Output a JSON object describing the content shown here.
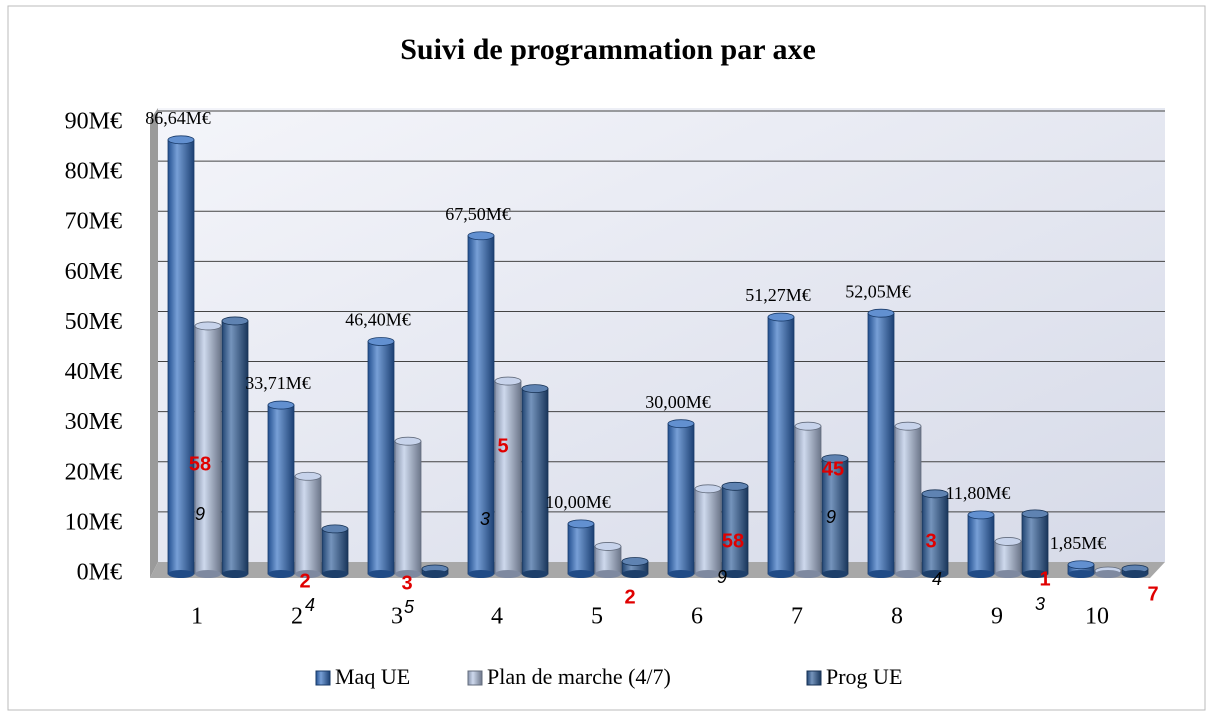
{
  "chart_data": {
    "type": "bar3d",
    "title": "Suivi de programmation par axe",
    "categories": [
      "1",
      "2",
      "3",
      "4",
      "5",
      "6",
      "7",
      "8",
      "9",
      "10"
    ],
    "series": [
      {
        "name": "Maq UE",
        "color": "#2e6bc0",
        "values": [
          86.64,
          33.71,
          46.4,
          67.5,
          10.0,
          30.0,
          51.27,
          52.05,
          11.8,
          1.85
        ],
        "value_labels": [
          "86,64M€",
          "33,71M€",
          "46,40M€",
          "67,50M€",
          "10,00M€",
          "30,00M€",
          "51,27M€",
          "52,05M€",
          "11,80M€",
          "1,85M€"
        ]
      },
      {
        "name": "Plan de marche (4/7)",
        "color": "#b4c4e4",
        "values": [
          49.5,
          19.5,
          26.5,
          38.5,
          5.5,
          17,
          29.5,
          29.5,
          6.5,
          0.6
        ]
      },
      {
        "name": "Prog UE",
        "color": "#2a5a98",
        "values": [
          50.5,
          9,
          1,
          37,
          2.5,
          17.5,
          23,
          16,
          12,
          1
        ]
      }
    ],
    "labels_red": [
      "58",
      "2",
      "3",
      "5",
      "2",
      "58",
      "45",
      "3",
      "1",
      "7"
    ],
    "labels_italic": [
      "9",
      "4",
      "5",
      "3",
      null,
      "9",
      "9",
      "4",
      "3",
      null
    ],
    "ylim": [
      0,
      90
    ],
    "yticks": [
      {
        "value": 0,
        "label": "0M€"
      },
      {
        "value": 10,
        "label": "10M€"
      },
      {
        "value": 20,
        "label": "20M€"
      },
      {
        "value": 30,
        "label": "30M€"
      },
      {
        "value": 40,
        "label": "40M€"
      },
      {
        "value": 50,
        "label": "50M€"
      },
      {
        "value": 60,
        "label": "60M€"
      },
      {
        "value": 70,
        "label": "70M€"
      },
      {
        "value": 80,
        "label": "80M€"
      },
      {
        "value": 90,
        "label": "90M€"
      }
    ],
    "grid": true,
    "legend": "bottom"
  }
}
